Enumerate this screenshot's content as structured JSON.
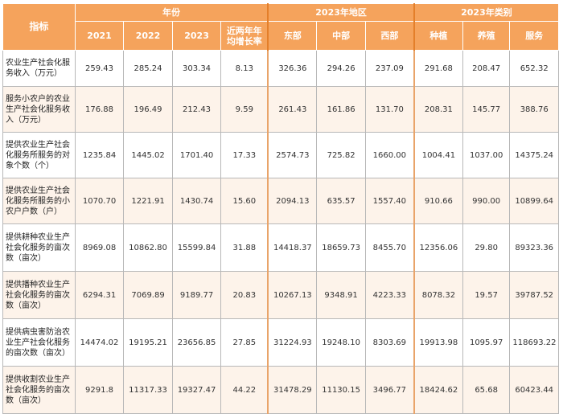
{
  "table": {
    "corner_label": "指标",
    "group_headers": {
      "year": "年份",
      "region": "2023年地区",
      "category": "2023年类别"
    },
    "sub_headers": {
      "y2021": "2021",
      "y2022": "2022",
      "y2023": "2023",
      "avg_growth": "近两年年均增长率",
      "east": "东部",
      "central": "中部",
      "west": "西部",
      "planting": "种植",
      "breeding": "养殖",
      "service": "服务"
    },
    "rows": [
      {
        "label": "农业生产社会化服务收入（万元）",
        "values": [
          "259.43",
          "285.24",
          "303.34",
          "8.13",
          "326.36",
          "294.26",
          "237.09",
          "291.68",
          "208.47",
          "652.32"
        ]
      },
      {
        "label": "服务小农户的农业生产社会化服务收入（万元）",
        "values": [
          "176.88",
          "196.49",
          "212.43",
          "9.59",
          "261.43",
          "161.86",
          "131.70",
          "208.31",
          "145.77",
          "388.76"
        ]
      },
      {
        "label": "提供农业生产社会化服务所服务的对象个数（个）",
        "values": [
          "1235.84",
          "1445.02",
          "1701.40",
          "17.33",
          "2574.73",
          "725.82",
          "1660.00",
          "1004.41",
          "1037.00",
          "14375.24"
        ]
      },
      {
        "label": "提供农业生产社会化服务所服务的小农户户数（户）",
        "values": [
          "1070.70",
          "1221.91",
          "1430.74",
          "15.60",
          "2094.13",
          "635.57",
          "1557.40",
          "910.66",
          "990.00",
          "10899.64"
        ]
      },
      {
        "label": "提供耕种农业生产社会化服务的亩次数（亩次）",
        "values": [
          "8969.08",
          "10862.80",
          "15599.84",
          "31.88",
          "14418.37",
          "18659.73",
          "8455.70",
          "12356.06",
          "29.80",
          "89323.36"
        ]
      },
      {
        "label": "提供播种农业生产社会化服务的亩次数（亩次）",
        "values": [
          "6294.31",
          "7069.89",
          "9189.77",
          "20.83",
          "10267.13",
          "9348.91",
          "4223.33",
          "8078.32",
          "19.57",
          "39787.52"
        ]
      },
      {
        "label": "提供病虫害防治农业生产社会化服务的亩次数（亩次）",
        "values": [
          "14474.02",
          "19195.21",
          "23656.85",
          "27.85",
          "31224.93",
          "19248.10",
          "8303.69",
          "19913.98",
          "1095.97",
          "118693.22"
        ]
      },
      {
        "label": "提供收割农业生产社会化服务的亩次数（亩次）",
        "values": [
          "9291.8",
          "11317.33",
          "19327.47",
          "44.22",
          "31478.29",
          "11130.15",
          "3496.77",
          "18424.62",
          "65.68",
          "60423.44"
        ]
      }
    ]
  }
}
